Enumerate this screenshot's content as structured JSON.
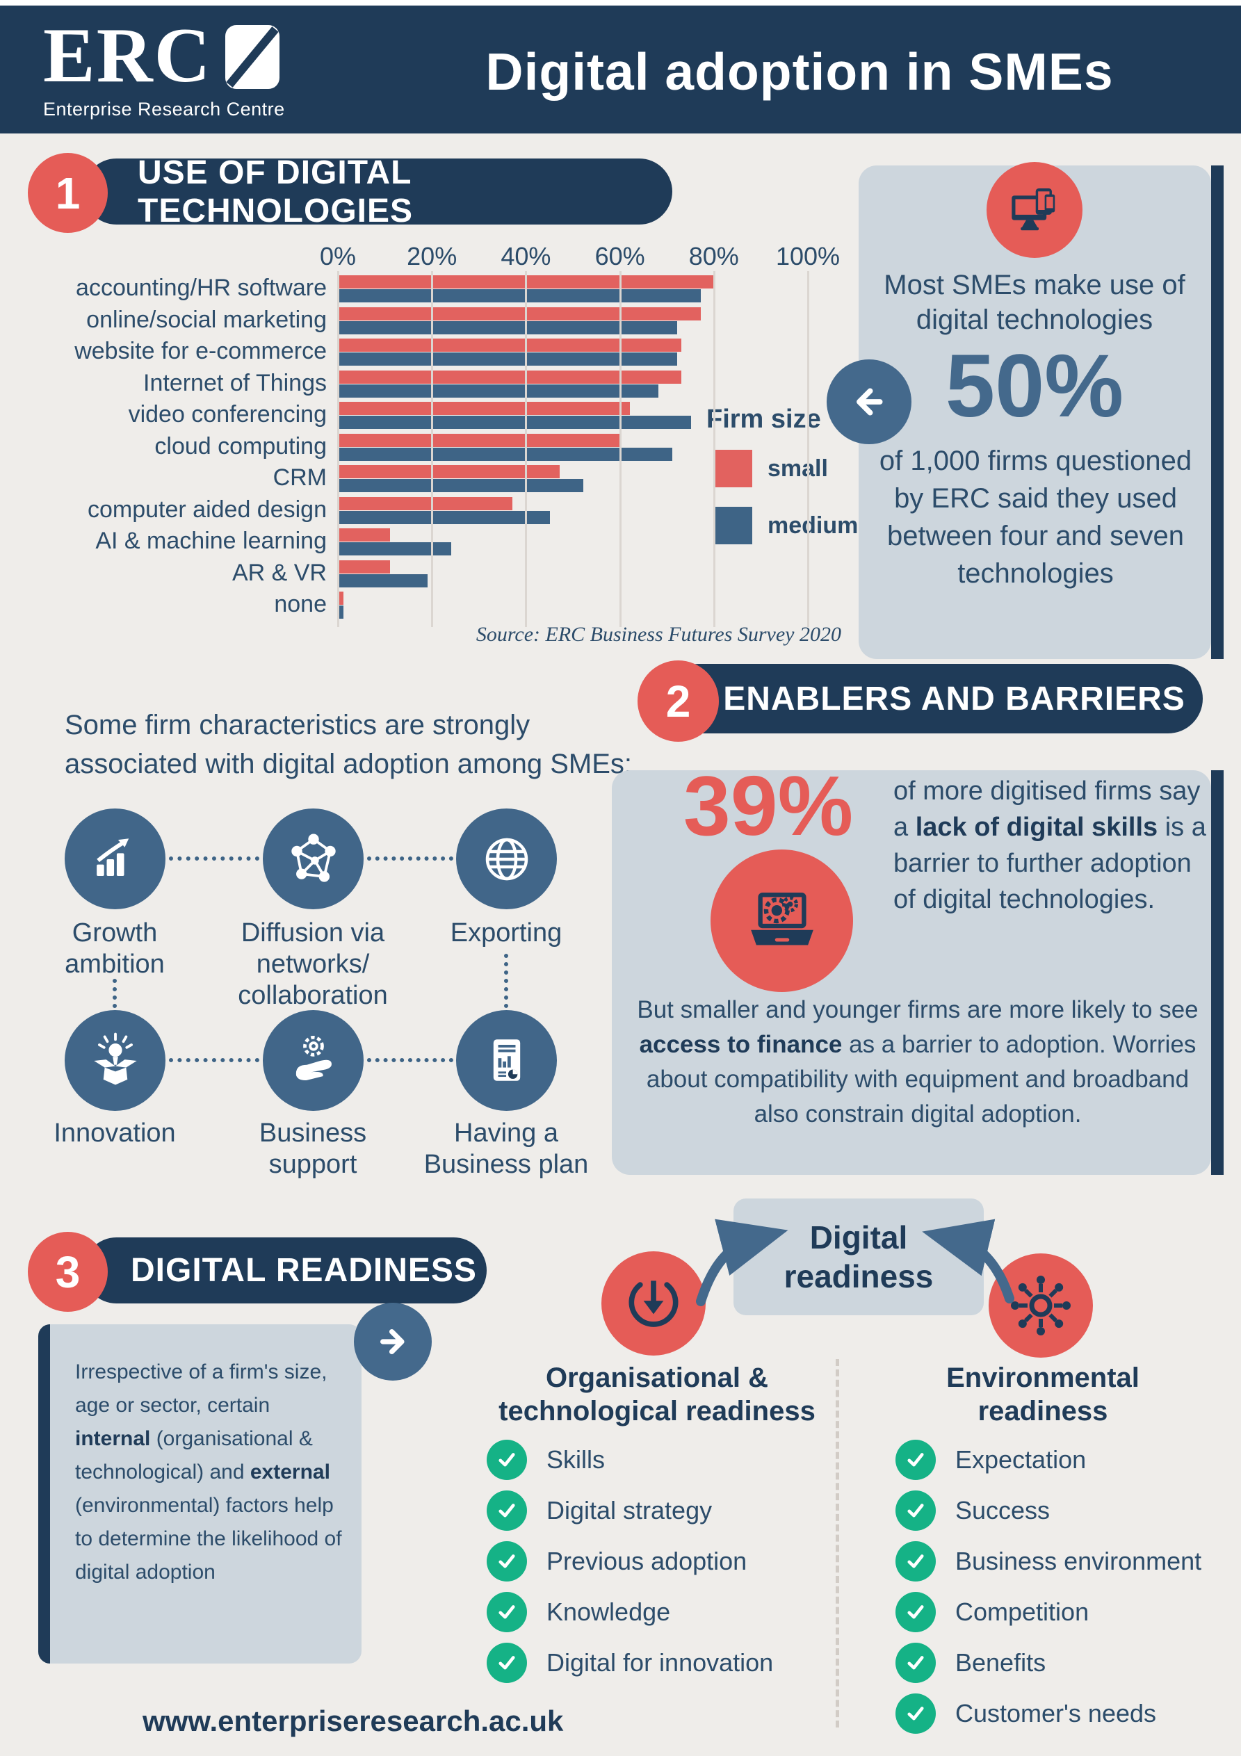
{
  "colors": {
    "navy": "#1F3B58",
    "body_text": "#2C4C6A",
    "coral": "#E55C57",
    "bar_small": "#E2625F",
    "bar_medium": "#3E6486",
    "steel_blue": "#44698C",
    "panel": "#CDD6DD",
    "background": "#EFEDEA",
    "green": "#15B286"
  },
  "header": {
    "logo_text": "ERC",
    "logo_subtitle": "Enterprise Research Centre",
    "title": "Digital adoption in SMEs"
  },
  "section1": {
    "number": "1",
    "heading": "USE OF DIGITAL TECHNOLOGIES",
    "legend_title": "Firm size",
    "source": "Source: ERC Business Futures Survey 2020",
    "sidebar": {
      "icon": "devices-icon",
      "intro": "Most SMEs make use of digital technologies",
      "stat": "50%",
      "body": "of 1,000 firms questioned by ERC said they used between four and seven technologies"
    }
  },
  "chart_data": {
    "type": "bar",
    "orientation": "horizontal",
    "title": "USE OF DIGITAL TECHNOLOGIES",
    "categories": [
      "accounting/HR software",
      "online/social marketing",
      "website for e-commerce",
      "Internet of Things",
      "video conferencing",
      "cloud computing",
      "CRM",
      "computer aided design",
      "AI & machine learning",
      "AR & VR",
      "none"
    ],
    "series": [
      {
        "name": "small",
        "color": "#E2625F",
        "values": [
          80,
          77,
          73,
          73,
          62,
          60,
          47,
          37,
          11,
          11,
          1
        ]
      },
      {
        "name": "medium",
        "color": "#3E6486",
        "values": [
          77,
          72,
          72,
          68,
          75,
          71,
          52,
          45,
          24,
          19,
          1
        ]
      }
    ],
    "x_ticks": [
      "0%",
      "20%",
      "40%",
      "60%",
      "80%",
      "100%"
    ],
    "xlim": [
      0,
      100
    ],
    "grid": true,
    "legend_title": "Firm size",
    "legend_position": "right",
    "source": "Source: ERC Business Futures Survey 2020"
  },
  "characteristics": {
    "intro": "Some firm characteristics are strongly associated with digital adoption among SMEs:",
    "items": [
      {
        "label": "Growth\nambition",
        "icon": "growth-icon"
      },
      {
        "label": "Diffusion via\nnetworks/\ncollaboration",
        "icon": "network-icon"
      },
      {
        "label": "Exporting",
        "icon": "globe-icon"
      },
      {
        "label": "Innovation",
        "icon": "innovation-icon"
      },
      {
        "label": "Business\nsupport",
        "icon": "support-icon"
      },
      {
        "label": "Having a\nBusiness plan",
        "icon": "plan-icon"
      }
    ]
  },
  "section2": {
    "number": "2",
    "heading": "ENABLERS AND BARRIERS",
    "icon": "laptop-gears-icon",
    "stat": "39%",
    "stat_text": "of more digitised firms say a **lack of digital skills** is a barrier to further adoption of digital technologies.",
    "body": "But smaller and younger firms are more likely to see **access to finance** as a barrier to adoption. Worries about compatibility with equipment and broadband also constrain digital adoption."
  },
  "section3": {
    "number": "3",
    "heading": "DIGITAL READINESS",
    "box_text": "Irrespective of a firm's size, age or sector, certain **internal** (organisational & technological) and **external** (environmental) factors help to determine the likelihood of digital adoption",
    "readiness_label": "Digital\nreadiness",
    "left_icon": "readiness-down-icon",
    "right_icon": "hub-icon",
    "columns": [
      {
        "title": "Organisational &\ntechnological readiness",
        "items": [
          "Skills",
          "Digital strategy",
          "Previous adoption",
          "Knowledge",
          "Digital for innovation"
        ]
      },
      {
        "title": "Environmental\nreadiness",
        "items": [
          "Expectation",
          "Success",
          "Business environment",
          "Competition",
          "Benefits",
          "Customer's needs"
        ]
      }
    ]
  },
  "footer": {
    "website": "www.enterpriseresearch.ac.uk"
  }
}
